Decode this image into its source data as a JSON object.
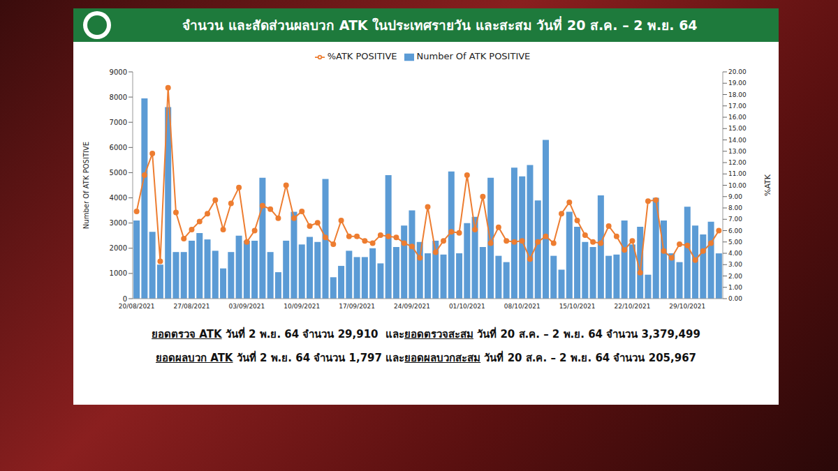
{
  "chart_data": {
    "type": "bar",
    "title": "จำนวน และสัดส่วนผลบวก ATK ในประเทศรายวัน และสะสม วันที่ 20 ส.ค. – 2 พ.ย. 64",
    "y_label": "Number Of ATK POSITIVE",
    "y2_label": "%ATK",
    "categories": [
      "20/08/2021",
      null,
      null,
      null,
      null,
      null,
      null,
      "27/08/2021",
      null,
      null,
      null,
      null,
      null,
      null,
      "03/09/2021",
      null,
      null,
      null,
      null,
      null,
      null,
      "10/09/2021",
      null,
      null,
      null,
      null,
      null,
      null,
      "17/09/2021",
      null,
      null,
      null,
      null,
      null,
      null,
      "24/09/2021",
      null,
      null,
      null,
      null,
      null,
      null,
      "01/10/2021",
      null,
      null,
      null,
      null,
      null,
      null,
      "08/10/2021",
      null,
      null,
      null,
      null,
      null,
      null,
      "15/10/2021",
      null,
      null,
      null,
      null,
      null,
      null,
      "22/10/2021",
      null,
      null,
      null,
      null,
      null,
      null,
      "29/10/2021",
      null,
      null,
      null,
      null
    ],
    "series": [
      {
        "name": "Number Of ATK POSITIVE",
        "type": "bar",
        "color": "#5b9bd5",
        "values": [
          3100,
          7950,
          2650,
          1350,
          7600,
          1850,
          1850,
          2300,
          2600,
          2350,
          1900,
          1200,
          1850,
          2500,
          2300,
          2300,
          4800,
          1850,
          1050,
          2300,
          3450,
          2150,
          2450,
          2250,
          4750,
          850,
          1300,
          1900,
          1650,
          1650,
          2000,
          1400,
          4900,
          2050,
          2900,
          3500,
          2250,
          1800,
          2300,
          1750,
          5050,
          1800,
          3000,
          3250,
          2050,
          4800,
          1700,
          1450,
          5200,
          4850,
          5300,
          3900,
          6300,
          1700,
          1150,
          3450,
          2850,
          2250,
          2050,
          4100,
          1700,
          1750,
          3100,
          2150,
          2850,
          950,
          4000,
          3100,
          1800,
          1450,
          3650,
          2900,
          2550,
          3050,
          1797
        ]
      },
      {
        "name": "%ATK POSITIVE",
        "type": "line",
        "axis": "y2",
        "color": "#ed7d31",
        "marker": "circle",
        "values": [
          7.7,
          10.9,
          12.8,
          3.3,
          18.6,
          7.6,
          5.3,
          6.1,
          6.8,
          7.5,
          8.7,
          6.1,
          8.4,
          9.8,
          5.0,
          6.0,
          8.2,
          7.9,
          7.1,
          10.0,
          7.1,
          7.7,
          6.4,
          6.7,
          5.4,
          4.8,
          6.9,
          5.5,
          5.5,
          5.1,
          4.9,
          5.6,
          5.5,
          5.4,
          4.9,
          4.6,
          3.6,
          8.1,
          4.1,
          5.1,
          5.9,
          5.8,
          10.9,
          6.1,
          9.0,
          4.9,
          6.3,
          5.1,
          5.0,
          5.1,
          3.5,
          5.0,
          5.5,
          4.9,
          7.5,
          8.5,
          6.9,
          5.6,
          5.0,
          4.9,
          6.4,
          5.5,
          4.3,
          5.1,
          2.3,
          8.6,
          8.7,
          4.2,
          3.6,
          4.8,
          4.7,
          3.4,
          4.2,
          4.9,
          6.0
        ]
      }
    ],
    "ylim": [
      0,
      9000
    ],
    "yticks": [
      0,
      1000,
      2000,
      3000,
      4000,
      5000,
      6000,
      7000,
      8000,
      9000
    ],
    "y2lim": [
      0,
      20
    ],
    "y2ticks": [
      {
        "value": 0,
        "label": "0.00"
      },
      {
        "value": 1,
        "label": "1.00"
      },
      {
        "value": 2,
        "label": "2.00"
      },
      {
        "value": 3,
        "label": "3.00"
      },
      {
        "value": 4,
        "label": "4.00"
      },
      {
        "value": 5,
        "label": "5.00"
      },
      {
        "value": 6,
        "label": "6.00"
      },
      {
        "value": 7,
        "label": "7.00"
      },
      {
        "value": 8,
        "label": "8.00"
      },
      {
        "value": 9,
        "label": "9.00"
      },
      {
        "value": 10,
        "label": "10.00"
      },
      {
        "value": 11,
        "label": "11.00"
      },
      {
        "value": 12,
        "label": "12.00"
      },
      {
        "value": 13,
        "label": "13.00"
      },
      {
        "value": 14,
        "label": "14.00"
      },
      {
        "value": 15,
        "label": "15.00"
      },
      {
        "value": 16,
        "label": "16.00"
      },
      {
        "value": 17,
        "label": "17.00"
      },
      {
        "value": 18,
        "label": "18.00"
      },
      {
        "value": 19,
        "label": "19.00"
      },
      {
        "value": 20,
        "label": "20.00"
      }
    ],
    "grid": false,
    "legend": "top"
  },
  "notes": [
    [
      {
        "text": "ยอดตรวจ ATK",
        "underline": true
      },
      {
        "text": " วันที่ 2 พ.ย. 64 จำนวน 29,910  และ"
      },
      {
        "text": "ยอดตรวจสะสม",
        "underline": true
      },
      {
        "text": " วันที่ 20 ส.ค. – 2 พ.ย. 64 จำนวน 3,379,499"
      }
    ],
    [
      {
        "text": "ยอดผลบวก ATK",
        "underline": true
      },
      {
        "text": " วันที่ 2 พ.ย. 64 จำนวน 1,797 และ"
      },
      {
        "text": "ยอดผลบวกสะสม",
        "underline": true
      },
      {
        "text": " วันที่ 20 ส.ค. – 2 พ.ย. 64 จำนวน 205,967"
      }
    ]
  ]
}
